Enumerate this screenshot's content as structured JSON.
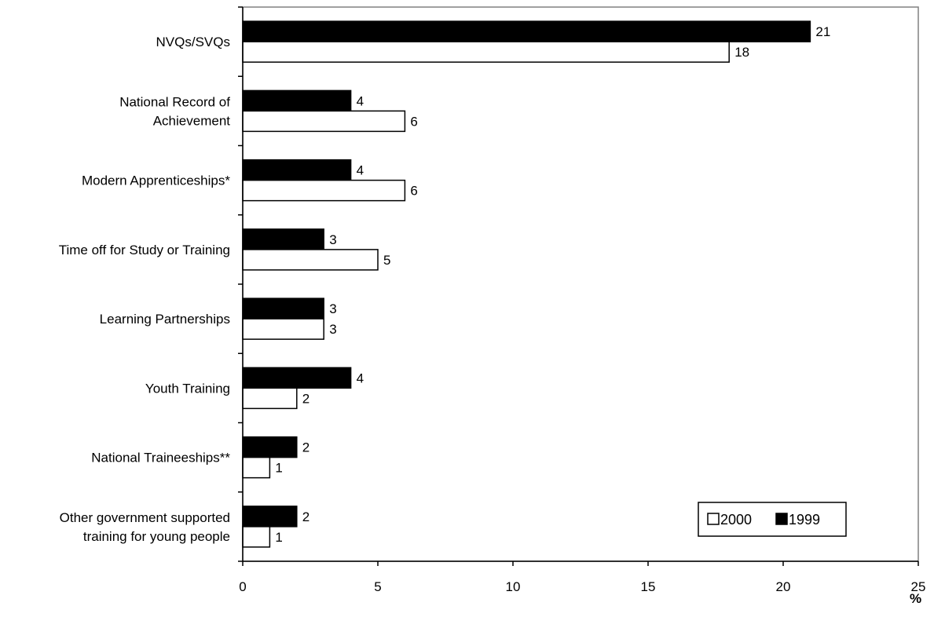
{
  "chart_data": {
    "type": "bar",
    "orientation": "horizontal",
    "categories": [
      [
        "NVQs/SVQs"
      ],
      [
        "National Record of",
        "Achievement"
      ],
      [
        "Modern Apprenticeships*"
      ],
      [
        "Time off for Study or Training"
      ],
      [
        "Learning Partnerships"
      ],
      [
        "Youth Training"
      ],
      [
        "National Traineeships**"
      ],
      [
        "Other government supported",
        "training for young people"
      ]
    ],
    "series": [
      {
        "name": "1999",
        "color": "#000000",
        "values": [
          21,
          4,
          4,
          3,
          3,
          4,
          2,
          2
        ]
      },
      {
        "name": "2000",
        "color": "#ffffff",
        "values": [
          18,
          6,
          6,
          5,
          3,
          2,
          1,
          1
        ]
      }
    ],
    "xlim": [
      0,
      25
    ],
    "xticks": [
      0,
      5,
      10,
      15,
      20,
      25
    ],
    "xlabel": "%",
    "legend": {
      "placement": "bottom-right",
      "order": [
        "2000",
        "1999"
      ]
    },
    "grid": false
  }
}
